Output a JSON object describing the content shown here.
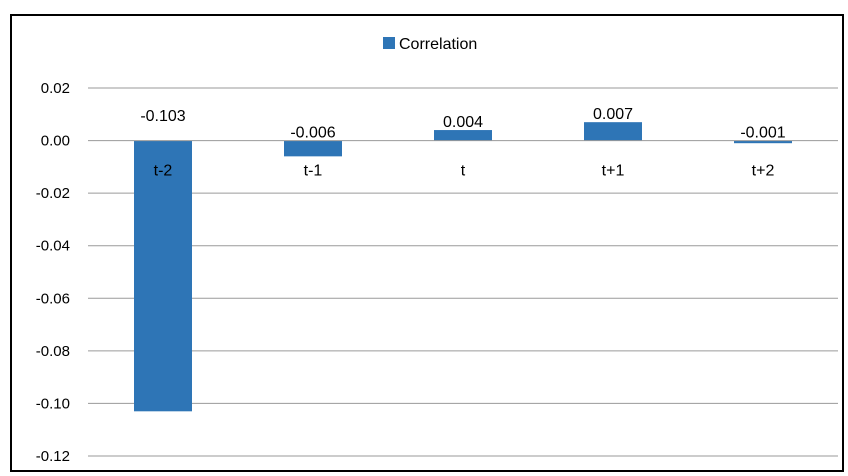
{
  "chart_data": {
    "type": "bar",
    "categories": [
      "t-2",
      "t-1",
      "t",
      "t+1",
      "t+2"
    ],
    "series": [
      {
        "name": "Correlation",
        "values": [
          -0.103,
          -0.006,
          0.004,
          0.007,
          -0.001
        ],
        "data_labels": [
          "-0.103",
          "-0.006",
          "0.004",
          "0.007",
          "-0.001"
        ],
        "color": "#2E75B6"
      }
    ],
    "ylim": [
      -0.12,
      0.02
    ],
    "yticks": [
      "0.02",
      "0.00",
      "-0.02",
      "-0.04",
      "-0.06",
      "-0.08",
      "-0.10",
      "-0.12"
    ],
    "ytick_values": [
      0.02,
      0.0,
      -0.02,
      -0.04,
      -0.06,
      -0.08,
      -0.1,
      -0.12
    ],
    "grid": true,
    "legend": "top-center",
    "title": "",
    "xlabel": "",
    "ylabel": ""
  },
  "colors": {
    "bar": "#2E75B6",
    "grid": "#9a9a9a",
    "axis": "#9a9a9a"
  }
}
